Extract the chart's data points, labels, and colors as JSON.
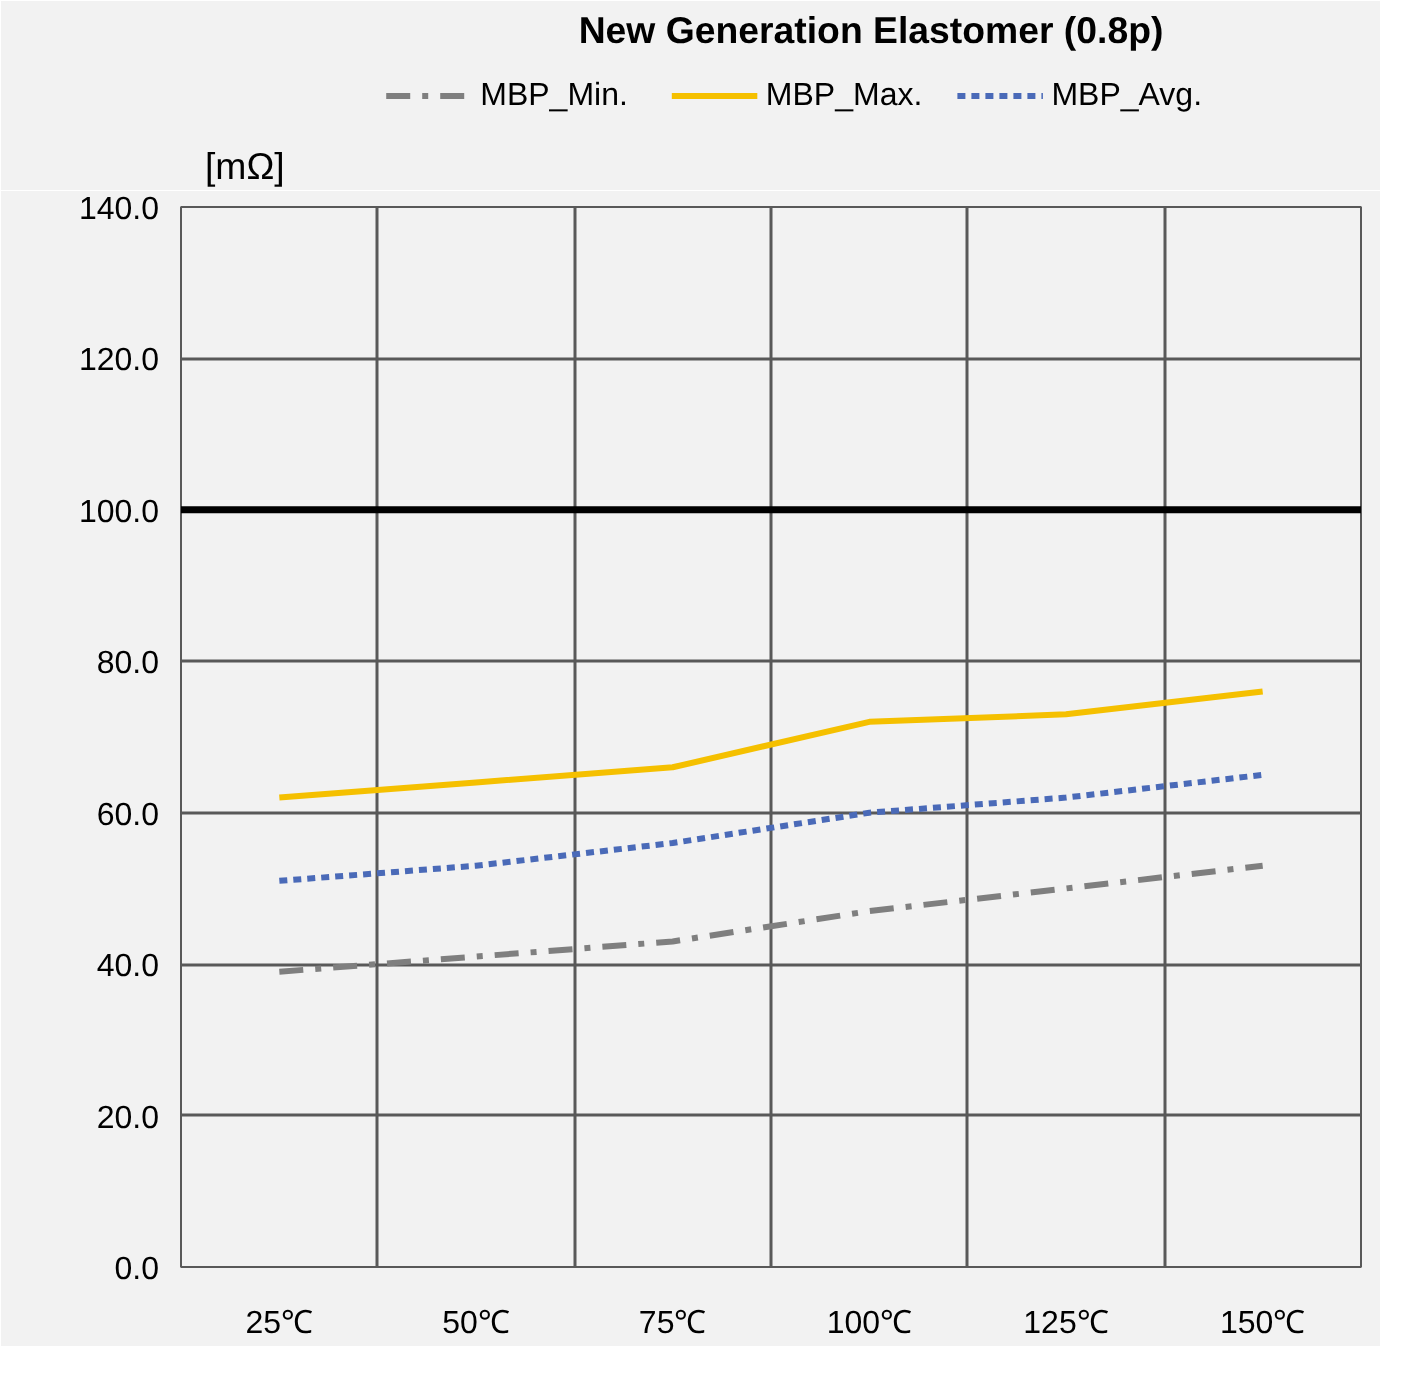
{
  "chart_data": {
    "type": "line",
    "title": "New Generation Elastomer (0.8p)",
    "ylabel": "[mΩ]",
    "categories": [
      "25℃",
      "50℃",
      "75℃",
      "100℃",
      "125℃",
      "150℃"
    ],
    "series": [
      {
        "name": "MBP_Min.",
        "color": "#7f7f7f",
        "line_style": "dashdot",
        "values": [
          39,
          41,
          43,
          47,
          50,
          53
        ]
      },
      {
        "name": "MBP_Max.",
        "color": "#f5c000",
        "line_style": "solid",
        "values": [
          62,
          64,
          66,
          72,
          73,
          76
        ]
      },
      {
        "name": "MBP_Avg.",
        "color": "#4a6ab8",
        "line_style": "dashed",
        "values": [
          51,
          53,
          56,
          60,
          62,
          65
        ]
      }
    ],
    "ylim": [
      0,
      140
    ],
    "yticks": [
      {
        "value": 0,
        "label": "0.0"
      },
      {
        "value": 20,
        "label": "20.0"
      },
      {
        "value": 40,
        "label": "40.0"
      },
      {
        "value": 60,
        "label": "60.0"
      },
      {
        "value": 80,
        "label": "80.0"
      },
      {
        "value": 100,
        "label": "100.0"
      },
      {
        "value": 120,
        "label": "120.0"
      },
      {
        "value": 140,
        "label": "140.0"
      }
    ],
    "ref_lines": [
      {
        "axis": "y",
        "value": 100,
        "label": null,
        "color": "#000000"
      }
    ],
    "grid": true,
    "legend": "top",
    "marker": "none"
  }
}
